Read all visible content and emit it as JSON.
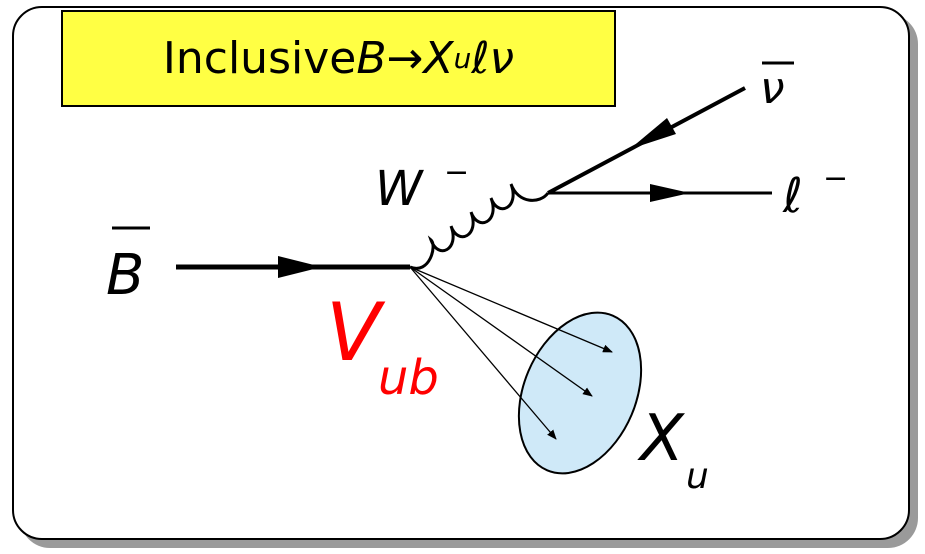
{
  "title": {
    "prefix": "Inclusive ",
    "b": "B",
    "arrow": " → ",
    "x": "X",
    "x_sub": "u",
    "rest": "ℓν"
  },
  "labels": {
    "b_meson": "B",
    "w_boson": "W",
    "w_charge": "−",
    "neutrino": "ν",
    "lepton": "ℓ",
    "lepton_charge": "−",
    "v_main": "V",
    "v_sub": "ub",
    "x_main": "X",
    "x_sub": "u"
  },
  "colors": {
    "title_bg": "#ffff44",
    "vub": "#ff0000",
    "hadron_fill": "#cfe9f8"
  }
}
